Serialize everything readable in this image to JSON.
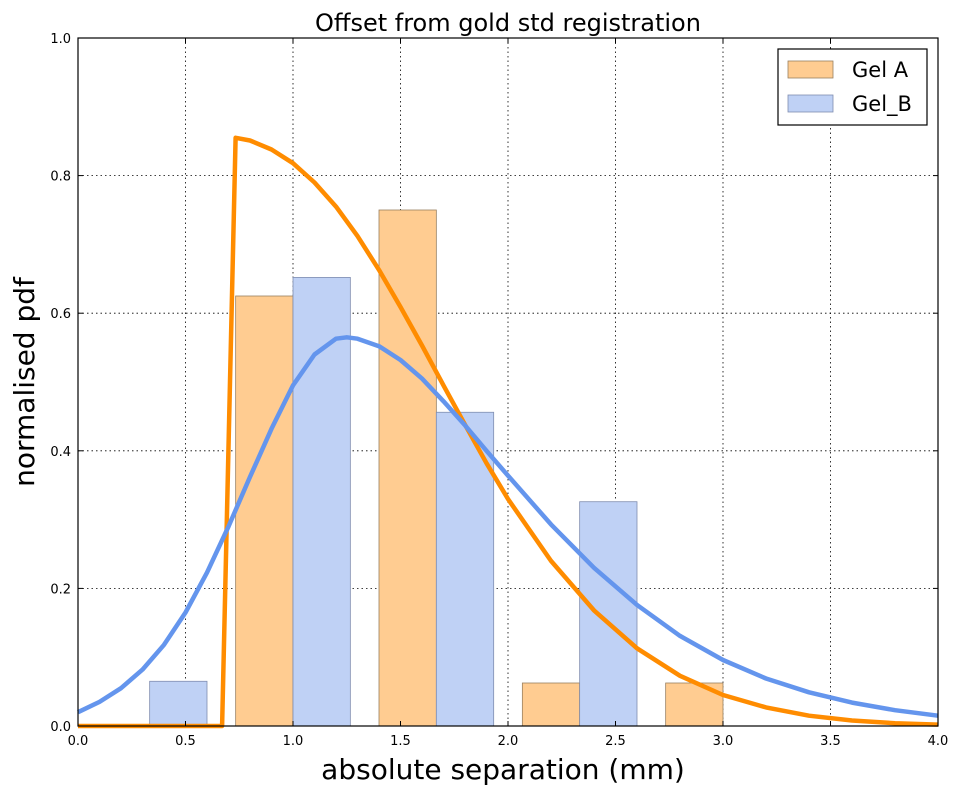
{
  "chart_data": {
    "type": "bar",
    "title": "Offset from gold std registration",
    "xlabel": "absolute separation (mm)",
    "ylabel": "normalised pdf",
    "xlim": [
      0.0,
      4.0
    ],
    "ylim": [
      0.0,
      1.0
    ],
    "x_ticks": [
      "0.0",
      "0.5",
      "1.0",
      "1.5",
      "2.0",
      "2.5",
      "3.0",
      "3.5",
      "4.0"
    ],
    "y_ticks": [
      "0.0",
      "0.2",
      "0.4",
      "0.6",
      "0.8",
      "1.0"
    ],
    "grid": true,
    "legend_position": "top-right",
    "bar_width": 0.2667,
    "bars": [
      {
        "name": "Gel A",
        "color": "#ffcc91",
        "edge": "#9a8060",
        "left_edges": [
          0.7333,
          1.4,
          2.0667,
          2.7333
        ],
        "values": [
          0.625,
          0.75,
          0.0625,
          0.0625
        ]
      },
      {
        "name": "Gel_B",
        "color": "#bfd1f5",
        "edge": "#7f8db0",
        "left_edges": [
          0.3333,
          1.0,
          1.6667,
          2.3333
        ],
        "values": [
          0.065,
          0.652,
          0.456,
          0.326
        ]
      }
    ],
    "curves": [
      {
        "color": "#ff8c00",
        "x": [
          0.0,
          0.3,
          0.5,
          0.65,
          0.67,
          0.733,
          0.8,
          0.9,
          1.0,
          1.1,
          1.2,
          1.3,
          1.4,
          1.5,
          1.6,
          1.7,
          1.8,
          1.9,
          2.0,
          2.2,
          2.4,
          2.6,
          2.8,
          3.0,
          3.2,
          3.4,
          3.6,
          3.8,
          4.0
        ],
        "y": [
          0.0,
          0.0,
          0.0,
          0.0,
          0.0,
          0.855,
          0.851,
          0.838,
          0.818,
          0.79,
          0.755,
          0.712,
          0.663,
          0.609,
          0.553,
          0.495,
          0.438,
          0.382,
          0.33,
          0.24,
          0.168,
          0.113,
          0.073,
          0.045,
          0.027,
          0.015,
          0.008,
          0.004,
          0.002
        ]
      },
      {
        "color": "#6495ed",
        "x": [
          0.0,
          0.1,
          0.2,
          0.3,
          0.4,
          0.5,
          0.6,
          0.7,
          0.8,
          0.9,
          1.0,
          1.1,
          1.2,
          1.25,
          1.3,
          1.4,
          1.5,
          1.6,
          1.7,
          1.8,
          1.9,
          2.0,
          2.2,
          2.4,
          2.6,
          2.8,
          3.0,
          3.2,
          3.4,
          3.6,
          3.8,
          4.0
        ],
        "y": [
          0.02,
          0.035,
          0.055,
          0.082,
          0.118,
          0.165,
          0.223,
          0.29,
          0.362,
          0.432,
          0.495,
          0.54,
          0.563,
          0.565,
          0.563,
          0.552,
          0.532,
          0.505,
          0.472,
          0.437,
          0.4,
          0.364,
          0.293,
          0.23,
          0.176,
          0.131,
          0.096,
          0.069,
          0.049,
          0.034,
          0.023,
          0.015
        ]
      }
    ]
  }
}
